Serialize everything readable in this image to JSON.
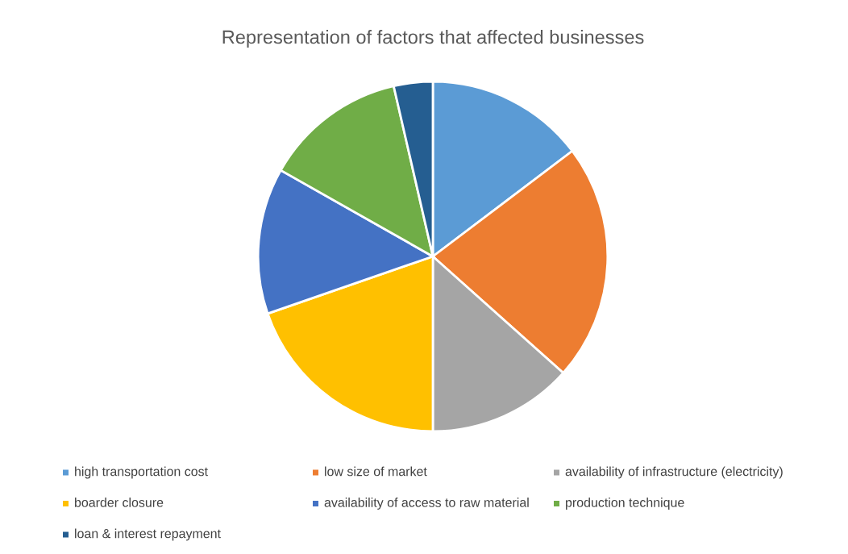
{
  "chart_data": {
    "type": "pie",
    "title": "Representation of factors that affected businesses",
    "categories": [
      "high transportation cost",
      "low size of market",
      "availability of infrastructure (electricity)",
      "boarder closure",
      "availability of access to raw material",
      "production technique",
      "loan & interest repayment"
    ],
    "values": [
      14.7,
      21.9,
      13.4,
      19.7,
      13.5,
      13.2,
      3.6
    ],
    "colors": [
      "#5b9bd5",
      "#ed7d31",
      "#a5a5a5",
      "#ffc000",
      "#4472c4",
      "#70ad47",
      "#255e91"
    ],
    "legend": "bottom"
  }
}
